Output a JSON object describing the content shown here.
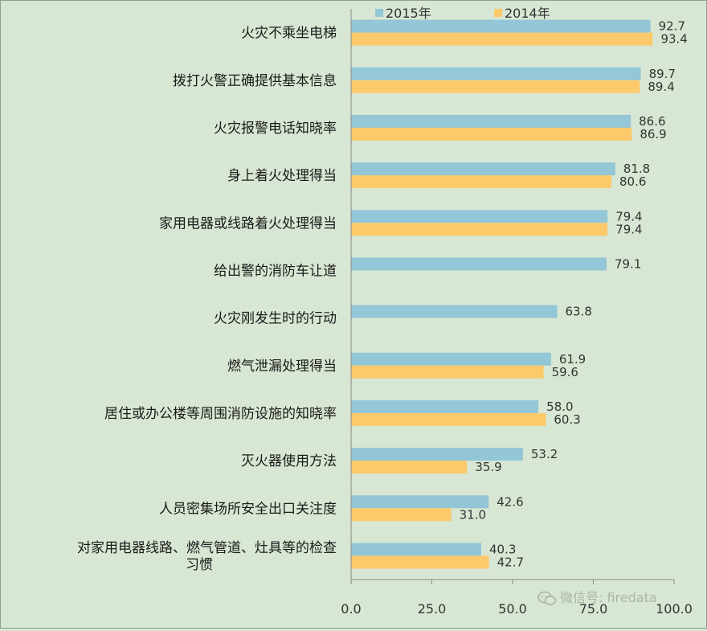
{
  "chart_data": {
    "type": "bar",
    "orientation": "horizontal",
    "categories": [
      "火灾不乘坐电梯",
      "拨打火警正确提供基本信息",
      "火灾报警电话知晓率",
      "身上着火处理得当",
      "家用电器或线路着火处理得当",
      "给出警的消防车让道",
      "火灾刚发生时的行动",
      "燃气泄漏处理得当",
      "居住或办公楼等周围消防设施的知晓率",
      "灭火器使用方法",
      "人员密集场所安全出口关注度",
      "对家用电器线路、燃气管道、灶具等的检查习惯"
    ],
    "category_lines": [
      [
        "火灾不乘坐电梯"
      ],
      [
        "拨打火警正确提供基本信息"
      ],
      [
        "火灾报警电话知晓率"
      ],
      [
        "身上着火处理得当"
      ],
      [
        "家用电器或线路着火处理得当"
      ],
      [
        "给出警的消防车让道"
      ],
      [
        "火灾刚发生时的行动"
      ],
      [
        "燃气泄漏处理得当"
      ],
      [
        "居住或办公楼等周围消防设施的知晓率"
      ],
      [
        "灭火器使用方法"
      ],
      [
        "人员密集场所安全出口关注度"
      ],
      [
        "对家用电器线路、燃气管道、灶具等的检查",
        "习惯"
      ]
    ],
    "series": [
      {
        "name": "2015年",
        "color": "#93c6d6",
        "values": [
          92.7,
          89.7,
          86.6,
          81.8,
          79.4,
          79.1,
          63.8,
          61.9,
          58.0,
          53.2,
          42.6,
          40.3
        ]
      },
      {
        "name": "2014年",
        "color": "#fcca6b",
        "values": [
          93.4,
          89.4,
          86.9,
          80.6,
          79.4,
          null,
          null,
          59.6,
          60.3,
          35.9,
          31.0,
          42.7
        ]
      }
    ],
    "xlim": [
      0,
      100
    ],
    "x_ticks": [
      0,
      25,
      50,
      75,
      100
    ],
    "x_tick_labels": [
      "0.0",
      "25.0",
      "50.0",
      "75.0",
      "100.0"
    ],
    "title": "",
    "xlabel": "",
    "ylabel": "",
    "grid": false,
    "legend_position": "top"
  },
  "watermark": {
    "text": "微信号: firedata",
    "icon": "wechat-icon"
  }
}
